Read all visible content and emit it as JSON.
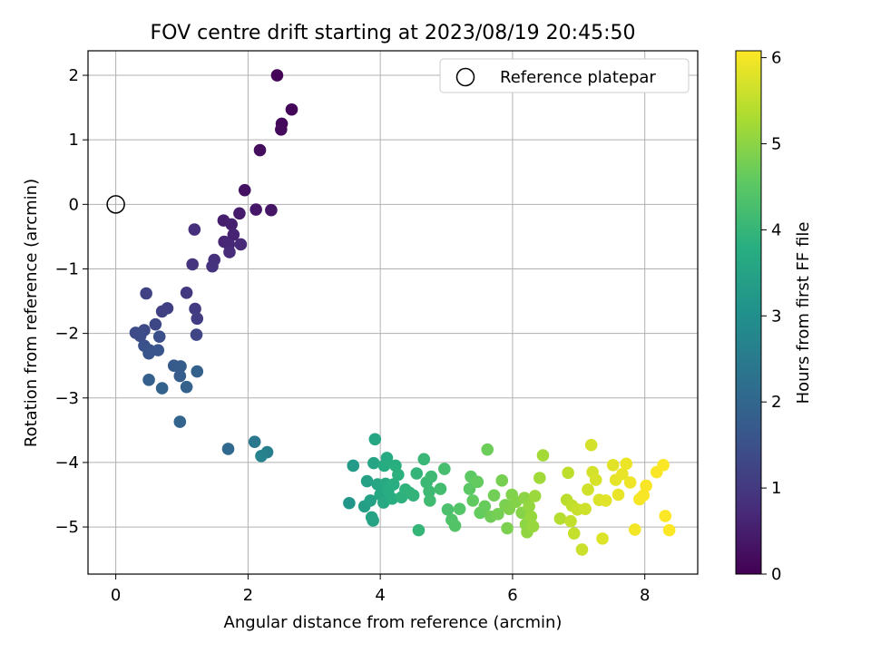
{
  "chart_data": {
    "type": "scatter",
    "title": "FOV centre drift starting at 2023/08/19 20:45:50",
    "xlabel": "Angular distance from reference (arcmin)",
    "ylabel": "Rotation from reference (arcmin)",
    "xlim": [
      -0.42,
      8.8
    ],
    "ylim": [
      -5.73,
      2.38
    ],
    "xticks": [
      0,
      2,
      4,
      6,
      8
    ],
    "yticks": [
      -5,
      -4,
      -3,
      -2,
      -1,
      0,
      1,
      2
    ],
    "grid": true,
    "legend": {
      "position": "top-right",
      "entries": [
        "Reference platepar"
      ]
    },
    "reference_point": {
      "x": 0,
      "y": 0
    },
    "colorbar": {
      "label": "Hours from first FF file",
      "range": [
        0,
        6.08
      ],
      "ticks": [
        0,
        1,
        2,
        3,
        4,
        5,
        6
      ],
      "colormap": "viridis"
    },
    "series": [
      {
        "points": [
          [
            2.44,
            2.0,
            0.05
          ],
          [
            2.66,
            1.47,
            0.08
          ],
          [
            2.51,
            1.25,
            0.12
          ],
          [
            2.5,
            1.16,
            0.15
          ],
          [
            2.18,
            0.84,
            0.2
          ],
          [
            1.95,
            0.22,
            0.3
          ],
          [
            2.35,
            -0.09,
            0.35
          ],
          [
            2.12,
            -0.08,
            0.38
          ],
          [
            1.87,
            -0.14,
            0.45
          ],
          [
            1.63,
            -0.25,
            0.5
          ],
          [
            1.75,
            -0.31,
            0.55
          ],
          [
            1.78,
            -0.47,
            0.6
          ],
          [
            1.64,
            -0.58,
            0.65
          ],
          [
            1.71,
            -0.62,
            0.68
          ],
          [
            1.89,
            -0.62,
            0.72
          ],
          [
            1.72,
            -0.74,
            0.75
          ],
          [
            1.19,
            -0.39,
            0.8
          ],
          [
            1.49,
            -0.86,
            0.85
          ],
          [
            1.46,
            -0.96,
            0.88
          ],
          [
            1.16,
            -0.93,
            0.92
          ],
          [
            1.07,
            -1.37,
            1.0
          ],
          [
            1.2,
            -1.62,
            1.05
          ],
          [
            1.23,
            -1.77,
            1.08
          ],
          [
            0.78,
            -1.61,
            1.12
          ],
          [
            0.7,
            -1.66,
            1.15
          ],
          [
            0.46,
            -1.38,
            1.2
          ],
          [
            1.22,
            -2.02,
            1.25
          ],
          [
            0.6,
            -1.86,
            1.3
          ],
          [
            0.43,
            -1.95,
            1.35
          ],
          [
            0.3,
            -1.99,
            1.4
          ],
          [
            0.37,
            -2.04,
            1.42
          ],
          [
            0.66,
            -2.05,
            1.45
          ],
          [
            0.43,
            -2.19,
            1.5
          ],
          [
            0.51,
            -2.26,
            1.55
          ],
          [
            0.5,
            -2.31,
            1.58
          ],
          [
            0.64,
            -2.26,
            1.6
          ],
          [
            0.88,
            -2.5,
            1.7
          ],
          [
            0.98,
            -2.51,
            1.75
          ],
          [
            0.97,
            -2.66,
            1.78
          ],
          [
            0.5,
            -2.72,
            1.82
          ],
          [
            1.23,
            -2.59,
            1.85
          ],
          [
            1.07,
            -2.83,
            1.9
          ],
          [
            0.7,
            -2.85,
            1.92
          ],
          [
            0.97,
            -3.37,
            1.95
          ],
          [
            1.7,
            -3.79,
            2.05
          ],
          [
            2.1,
            -3.68,
            2.4
          ],
          [
            2.29,
            -3.84,
            2.6
          ],
          [
            2.2,
            -3.9,
            2.7
          ],
          [
            3.53,
            -4.63,
            3.2
          ],
          [
            3.59,
            -4.05,
            3.3
          ],
          [
            3.76,
            -4.68,
            3.4
          ],
          [
            3.85,
            -4.59,
            3.45
          ],
          [
            3.8,
            -4.29,
            3.48
          ],
          [
            3.87,
            -4.85,
            3.5
          ],
          [
            3.89,
            -4.9,
            3.52
          ],
          [
            3.9,
            -4.01,
            3.55
          ],
          [
            3.92,
            -3.64,
            3.6
          ],
          [
            3.96,
            -4.34,
            3.6
          ],
          [
            4.0,
            -4.5,
            3.62
          ],
          [
            4.05,
            -4.62,
            3.65
          ],
          [
            4.08,
            -4.33,
            3.68
          ],
          [
            4.1,
            -3.93,
            3.7
          ],
          [
            4.06,
            -4.05,
            3.72
          ],
          [
            4.12,
            -4.44,
            3.75
          ],
          [
            4.18,
            -4.56,
            3.78
          ],
          [
            4.2,
            -4.34,
            3.8
          ],
          [
            4.23,
            -4.05,
            3.82
          ],
          [
            4.27,
            -4.19,
            3.85
          ],
          [
            4.32,
            -4.54,
            3.88
          ],
          [
            4.38,
            -4.42,
            3.9
          ],
          [
            4.44,
            -4.47,
            3.92
          ],
          [
            4.5,
            -4.51,
            3.95
          ],
          [
            4.55,
            -4.17,
            3.98
          ],
          [
            4.58,
            -5.05,
            4.0
          ],
          [
            4.66,
            -3.95,
            4.05
          ],
          [
            4.7,
            -4.31,
            4.08
          ],
          [
            4.74,
            -4.45,
            4.1
          ],
          [
            4.77,
            -4.22,
            4.12
          ],
          [
            4.75,
            -4.59,
            4.15
          ],
          [
            4.91,
            -4.41,
            4.2
          ],
          [
            4.97,
            -4.1,
            4.22
          ],
          [
            5.02,
            -4.73,
            4.3
          ],
          [
            5.08,
            -4.89,
            4.35
          ],
          [
            5.13,
            -4.98,
            4.4
          ],
          [
            5.2,
            -4.72,
            4.42
          ],
          [
            5.35,
            -4.41,
            4.5
          ],
          [
            5.37,
            -4.22,
            4.55
          ],
          [
            5.4,
            -4.59,
            4.58
          ],
          [
            5.47,
            -4.3,
            4.6
          ],
          [
            5.51,
            -4.78,
            4.62
          ],
          [
            5.58,
            -4.68,
            4.65
          ],
          [
            5.62,
            -3.8,
            4.7
          ],
          [
            5.67,
            -4.84,
            4.72
          ],
          [
            5.72,
            -4.51,
            4.75
          ],
          [
            5.78,
            -4.8,
            4.78
          ],
          [
            5.84,
            -4.28,
            4.8
          ],
          [
            5.89,
            -4.66,
            4.82
          ],
          [
            5.92,
            -5.02,
            4.85
          ],
          [
            5.95,
            -4.72,
            4.88
          ],
          [
            5.99,
            -4.5,
            4.9
          ],
          [
            6.05,
            -4.61,
            4.92
          ],
          [
            6.14,
            -4.78,
            4.95
          ],
          [
            6.18,
            -4.55,
            5.0
          ],
          [
            6.2,
            -4.96,
            5.02
          ],
          [
            6.22,
            -5.08,
            5.05
          ],
          [
            6.25,
            -4.68,
            5.08
          ],
          [
            6.28,
            -4.84,
            5.1
          ],
          [
            6.31,
            -4.99,
            5.12
          ],
          [
            6.34,
            -4.52,
            5.15
          ],
          [
            6.41,
            -4.24,
            5.2
          ],
          [
            6.46,
            -3.89,
            5.22
          ],
          [
            6.72,
            -4.87,
            5.4
          ],
          [
            6.82,
            -4.58,
            5.45
          ],
          [
            6.84,
            -4.16,
            5.48
          ],
          [
            6.9,
            -4.67,
            5.5
          ],
          [
            6.88,
            -4.91,
            5.52
          ],
          [
            6.93,
            -5.1,
            5.55
          ],
          [
            6.98,
            -4.73,
            5.58
          ],
          [
            7.05,
            -5.35,
            5.6
          ],
          [
            7.1,
            -4.72,
            5.62
          ],
          [
            7.14,
            -4.42,
            5.65
          ],
          [
            7.19,
            -3.73,
            5.68
          ],
          [
            7.21,
            -4.15,
            5.7
          ],
          [
            7.26,
            -4.27,
            5.72
          ],
          [
            7.31,
            -4.58,
            5.75
          ],
          [
            7.36,
            -5.18,
            5.78
          ],
          [
            7.41,
            -4.59,
            5.8
          ],
          [
            7.52,
            -4.04,
            5.82
          ],
          [
            7.56,
            -4.27,
            5.85
          ],
          [
            7.6,
            -4.5,
            5.88
          ],
          [
            7.66,
            -4.18,
            5.9
          ],
          [
            7.72,
            -4.02,
            5.92
          ],
          [
            7.78,
            -4.31,
            5.95
          ],
          [
            7.85,
            -5.04,
            5.98
          ],
          [
            7.92,
            -4.57,
            6.0
          ],
          [
            7.98,
            -4.51,
            6.02
          ],
          [
            8.02,
            -4.36,
            6.03
          ],
          [
            8.18,
            -4.15,
            6.04
          ],
          [
            8.28,
            -4.04,
            6.05
          ],
          [
            8.31,
            -4.83,
            6.06
          ],
          [
            8.37,
            -5.05,
            6.07
          ]
        ]
      }
    ]
  }
}
